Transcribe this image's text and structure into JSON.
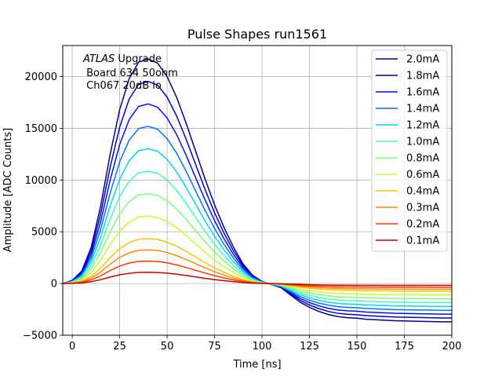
{
  "chart_data": {
    "type": "line",
    "title": "Pulse Shapes run1561",
    "xlabel": "Time [ns]",
    "ylabel": "Amplitude [ADC Counts]",
    "xlim": [
      -5,
      200
    ],
    "ylim": [
      -5000,
      23000
    ],
    "xticks": [
      0,
      25,
      50,
      75,
      100,
      125,
      150,
      175,
      200
    ],
    "xtick_labels": [
      "0",
      "25",
      "50",
      "75",
      "100",
      "125",
      "150",
      "175",
      "200"
    ],
    "yticks": [
      -5000,
      0,
      5000,
      10000,
      15000,
      20000
    ],
    "ytick_labels": [
      "−5000",
      "0",
      "5000",
      "10000",
      "15000",
      "20000"
    ],
    "grid": true,
    "legend_position": "top-right",
    "annotation": {
      "line1_italic": "ATLAS",
      "line1_rest": " Upgrade",
      "line2": " Board 634 50ohm",
      "line3": " Ch067 20dB lo"
    },
    "x": [
      -5,
      0,
      5,
      10,
      15,
      20,
      25,
      30,
      35,
      40,
      45,
      50,
      55,
      60,
      65,
      70,
      75,
      80,
      85,
      90,
      95,
      100,
      105,
      110,
      115,
      120,
      125,
      130,
      135,
      140,
      145,
      150,
      155,
      160,
      165,
      170,
      175,
      180,
      185,
      190,
      195,
      200
    ],
    "series": [
      {
        "name": "2.0mA",
        "color": "#00008f",
        "values": [
          0,
          300,
          1200,
          3500,
          7500,
          12500,
          16800,
          19800,
          21400,
          21700,
          21300,
          20000,
          18000,
          15500,
          12800,
          10100,
          7600,
          5400,
          3500,
          1900,
          800,
          200,
          -100,
          -400,
          -1100,
          -1800,
          -2300,
          -2700,
          -3000,
          -3200,
          -3300,
          -3350,
          -3450,
          -3500,
          -3550,
          -3600,
          -3620,
          -3640,
          -3660,
          -3680,
          -3700,
          -3700
        ]
      },
      {
        "name": "1.8mA",
        "color": "#0000c8",
        "values": [
          0,
          270,
          1080,
          3150,
          6750,
          11250,
          15120,
          17820,
          19260,
          19530,
          19170,
          18000,
          16200,
          13950,
          11520,
          9090,
          6840,
          4860,
          3150,
          1710,
          720,
          180,
          -90,
          -360,
          -990,
          -1620,
          -2070,
          -2430,
          -2700,
          -2880,
          -2970,
          -3015,
          -3105,
          -3150,
          -3195,
          -3240,
          -3258,
          -3276,
          -3294,
          -3312,
          -3330,
          -3330
        ]
      },
      {
        "name": "1.6mA",
        "color": "#0010ff",
        "values": [
          0,
          240,
          960,
          2800,
          6000,
          10000,
          13440,
          15840,
          17120,
          17360,
          17040,
          16000,
          14400,
          12400,
          10240,
          8080,
          6080,
          4320,
          2800,
          1520,
          640,
          160,
          -80,
          -320,
          -880,
          -1440,
          -1840,
          -2160,
          -2400,
          -2560,
          -2640,
          -2680,
          -2760,
          -2800,
          -2840,
          -2880,
          -2896,
          -2912,
          -2928,
          -2944,
          -2960,
          -2960
        ]
      },
      {
        "name": "1.4mA",
        "color": "#0074ff",
        "values": [
          0,
          210,
          840,
          2450,
          5250,
          8750,
          11760,
          13860,
          14980,
          15190,
          14910,
          14000,
          12600,
          10850,
          8960,
          7070,
          5320,
          3780,
          2450,
          1330,
          560,
          140,
          -70,
          -280,
          -770,
          -1260,
          -1610,
          -1890,
          -2100,
          -2240,
          -2310,
          -2345,
          -2415,
          -2450,
          -2485,
          -2520,
          -2534,
          -2548,
          -2562,
          -2576,
          -2590,
          -2590
        ]
      },
      {
        "name": "1.2mA",
        "color": "#00d4ff",
        "values": [
          0,
          180,
          720,
          2100,
          4500,
          7500,
          10080,
          11880,
          12840,
          13020,
          12780,
          12000,
          10800,
          9300,
          7680,
          6060,
          4560,
          3240,
          2100,
          1140,
          480,
          120,
          -60,
          -240,
          -660,
          -1080,
          -1380,
          -1620,
          -1800,
          -1920,
          -1980,
          -2010,
          -2070,
          -2100,
          -2130,
          -2160,
          -2172,
          -2184,
          -2196,
          -2208,
          -2220,
          -2220
        ]
      },
      {
        "name": "1.0mA",
        "color": "#3dffb9",
        "values": [
          0,
          150,
          600,
          1750,
          3750,
          6250,
          8400,
          9900,
          10700,
          10850,
          10650,
          10000,
          9000,
          7750,
          6400,
          5050,
          3800,
          2700,
          1750,
          950,
          400,
          100,
          -50,
          -200,
          -550,
          -900,
          -1150,
          -1350,
          -1500,
          -1600,
          -1650,
          -1675,
          -1725,
          -1750,
          -1775,
          -1800,
          -1810,
          -1820,
          -1830,
          -1840,
          -1850,
          -1850
        ]
      },
      {
        "name": "0.8mA",
        "color": "#80ff77",
        "values": [
          0,
          120,
          480,
          1400,
          3000,
          5000,
          6720,
          7920,
          8560,
          8680,
          8520,
          8000,
          7200,
          6200,
          5120,
          4040,
          3040,
          2160,
          1400,
          760,
          320,
          80,
          -40,
          -160,
          -440,
          -720,
          -920,
          -1080,
          -1200,
          -1280,
          -1320,
          -1340,
          -1380,
          -1400,
          -1420,
          -1440,
          -1448,
          -1456,
          -1464,
          -1472,
          -1480,
          -1480
        ]
      },
      {
        "name": "0.6mA",
        "color": "#c4ff33",
        "values": [
          0,
          90,
          360,
          1050,
          2250,
          3750,
          5040,
          5940,
          6420,
          6510,
          6390,
          6000,
          5400,
          4650,
          3840,
          3030,
          2280,
          1620,
          1050,
          570,
          240,
          60,
          -30,
          -120,
          -330,
          -540,
          -690,
          -810,
          -900,
          -960,
          -990,
          -1005,
          -1035,
          -1050,
          -1065,
          -1080,
          -1086,
          -1092,
          -1098,
          -1104,
          -1110,
          -1110
        ]
      },
      {
        "name": "0.4mA",
        "color": "#ffc400",
        "values": [
          0,
          60,
          240,
          700,
          1500,
          2500,
          3360,
          3960,
          4280,
          4340,
          4260,
          4000,
          3600,
          3100,
          2560,
          2020,
          1520,
          1080,
          700,
          380,
          160,
          40,
          -20,
          -80,
          -220,
          -360,
          -460,
          -540,
          -600,
          -640,
          -660,
          -670,
          -690,
          -700,
          -710,
          -720,
          -724,
          -728,
          -732,
          -736,
          -740,
          -740
        ]
      },
      {
        "name": "0.3mA",
        "color": "#ff8c00",
        "values": [
          0,
          45,
          180,
          525,
          1125,
          1875,
          2520,
          2970,
          3210,
          3255,
          3195,
          3000,
          2700,
          2325,
          1920,
          1515,
          1140,
          810,
          525,
          285,
          120,
          30,
          -15,
          -60,
          -165,
          -270,
          -345,
          -405,
          -450,
          -480,
          -495,
          -503,
          -518,
          -525,
          -533,
          -540,
          -543,
          -546,
          -549,
          -552,
          -555,
          -555
        ]
      },
      {
        "name": "0.2mA",
        "color": "#ff3800",
        "values": [
          0,
          30,
          120,
          350,
          750,
          1250,
          1680,
          1980,
          2140,
          2170,
          2130,
          2000,
          1800,
          1550,
          1280,
          1010,
          760,
          540,
          350,
          190,
          80,
          20,
          -10,
          -40,
          -110,
          -180,
          -230,
          -270,
          -300,
          -320,
          -330,
          -335,
          -345,
          -350,
          -355,
          -360,
          -362,
          -364,
          -366,
          -368,
          -370,
          -370
        ]
      },
      {
        "name": "0.1mA",
        "color": "#c80000",
        "values": [
          0,
          15,
          60,
          175,
          375,
          625,
          840,
          990,
          1070,
          1085,
          1065,
          1000,
          900,
          775,
          640,
          505,
          380,
          270,
          175,
          95,
          40,
          10,
          -5,
          -20,
          -55,
          -90,
          -115,
          -135,
          -150,
          -160,
          -165,
          -168,
          -173,
          -175,
          -178,
          -180,
          -181,
          -182,
          -183,
          -184,
          -185,
          -185
        ]
      }
    ]
  }
}
